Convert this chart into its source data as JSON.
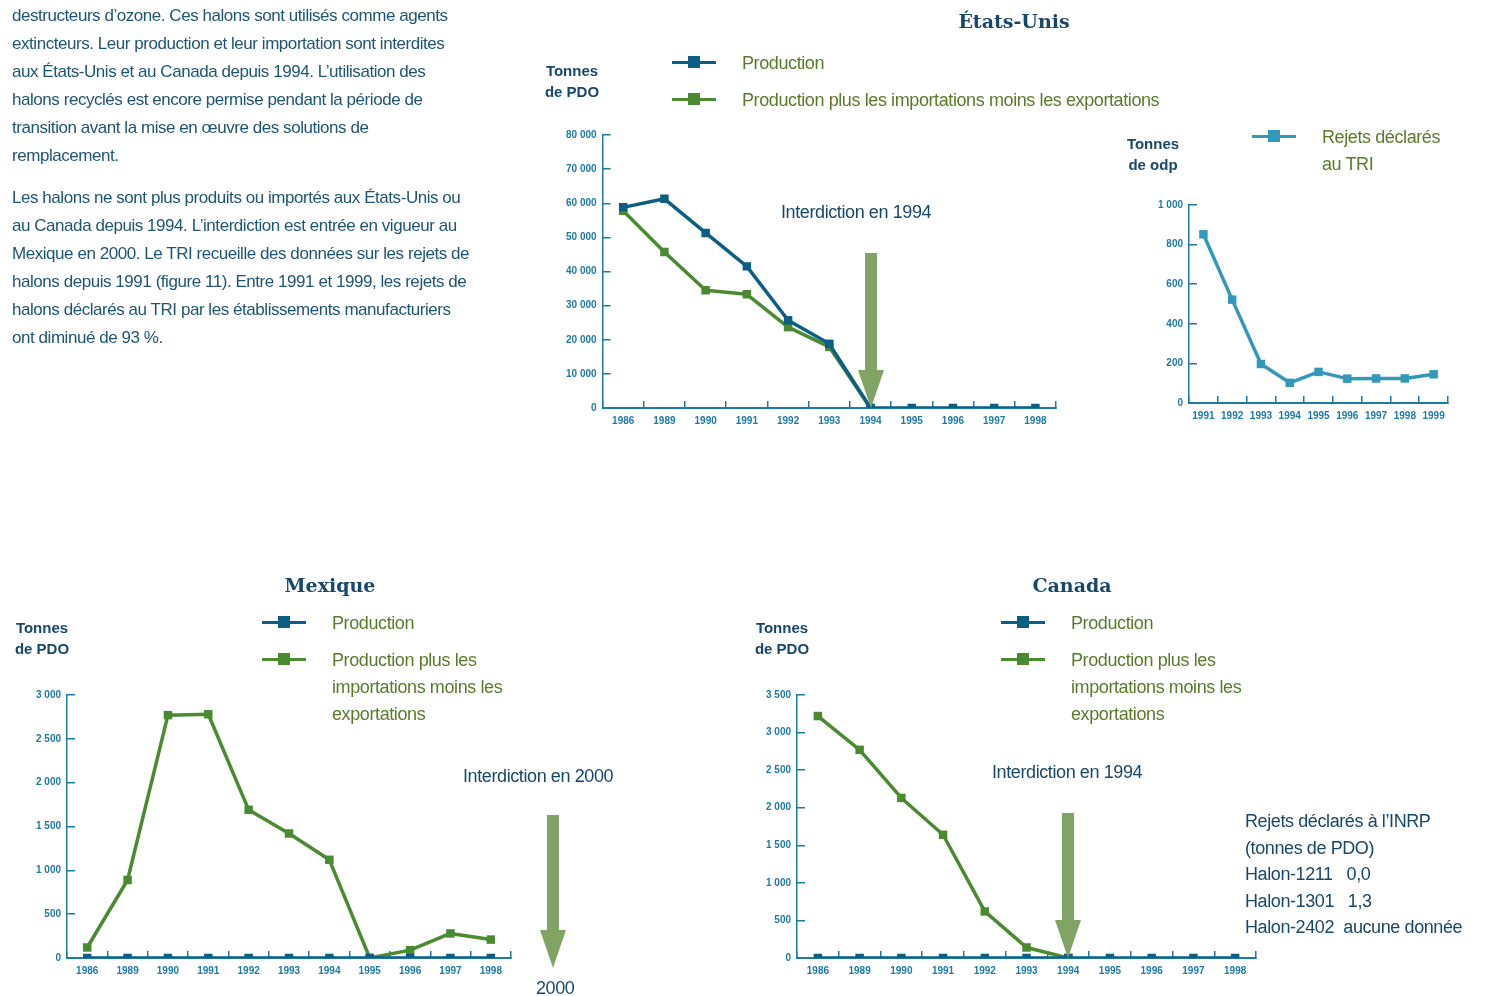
{
  "chart_data": [
    {
      "type": "other",
      "annotations": [
        "destructeurs d’ozone. Ces halons sont utilisés comme agents extincteurs. Leur production et leur importation sont interdites aux États-Unis et au Canada depuis 1994. L’utilisation des halons recyclés est encore permise pendant la période de transition avant la mise en œuvre des solutions de remplacement.",
        "Les halons ne sont plus produits ou importés aux États-Unis ou au Canada depuis 1994. L’interdiction est entrée en vigueur au Mexique en 2000. Le TRI recueille des données sur les rejets de halons depuis 1991 (figure 11). Entre 1991 et 1999, les rejets de halons déclarés au TRI par les établissements manufacturiers ont diminué de 93 %."
      ]
    },
    {
      "type": "line",
      "title": "États-Unis",
      "ylabel": "Tonnes de PDO",
      "categories": [
        "1986",
        "1989",
        "1990",
        "1991",
        "1992",
        "1993",
        "1994",
        "1995",
        "1996",
        "1997",
        "1998"
      ],
      "series": [
        {
          "name": "Production",
          "color": "#0b5e84",
          "values": [
            58800,
            61300,
            51300,
            41500,
            25700,
            18800,
            0,
            0,
            0,
            0,
            0
          ]
        },
        {
          "name": "Production plus les importations moins les exportations",
          "color": "#4a8a30",
          "values": [
            57800,
            45700,
            34500,
            33300,
            23700,
            17900,
            0,
            null,
            null,
            null,
            null
          ]
        }
      ],
      "ylim": [
        0,
        80000
      ],
      "yticks": [
        0,
        {
          "value": 10000,
          "label": "10 000"
        },
        {
          "value": 20000,
          "label": "20 000"
        },
        {
          "value": 30000,
          "label": "30 000"
        },
        {
          "value": 40000,
          "label": "40 000"
        },
        {
          "value": 50000,
          "label": "50 000"
        },
        {
          "value": 60000,
          "label": "60 000"
        },
        {
          "value": 70000,
          "label": "70 000"
        },
        {
          "value": 80000,
          "label": "80 000"
        }
      ],
      "legend": "top",
      "marker": "square",
      "annotations": [
        "Interdiction en 1994"
      ]
    },
    {
      "type": "line",
      "ylabel": "Tonnes de odp",
      "categories": [
        "1991",
        "1992",
        "1993",
        "1994",
        "1995",
        "1996",
        "1997",
        "1998",
        "1999"
      ],
      "series": [
        {
          "name": "Rejets déclarés au TRI",
          "color": "#3399bb",
          "values": [
            852,
            522,
            197,
            102,
            157,
            123,
            124,
            124,
            145
          ]
        }
      ],
      "ylim": [
        0,
        1000
      ],
      "yticks": [
        0,
        200,
        400,
        600,
        800,
        {
          "value": 1000,
          "label": "1 000"
        }
      ],
      "legend": "top right",
      "marker": "square"
    },
    {
      "type": "line",
      "title": "Mexique",
      "ylabel": "Tonnes de PDO",
      "categories": [
        "1986",
        "1989",
        "1990",
        "1991",
        "1992",
        "1993",
        "1994",
        "1995",
        "1996",
        "1997",
        "1998"
      ],
      "series": [
        {
          "name": "Production",
          "color": "#0b5e84",
          "values": [
            0,
            0,
            0,
            0,
            0,
            0,
            0,
            0,
            0,
            0,
            0
          ]
        },
        {
          "name": "Production plus les importations moins les exportations",
          "color": "#4a8a30",
          "values": [
            120,
            890,
            2770,
            2780,
            1690,
            1420,
            1120,
            0,
            90,
            280,
            210
          ]
        }
      ],
      "ylim": [
        0,
        3000
      ],
      "yticks": [
        0,
        500,
        {
          "value": 1000,
          "label": "1 000"
        },
        {
          "value": 1500,
          "label": "1 500"
        },
        {
          "value": 2000,
          "label": "2 000"
        },
        {
          "value": 2500,
          "label": "2 500"
        },
        {
          "value": 3000,
          "label": "3 000"
        }
      ],
      "legend": "top",
      "marker": "square",
      "annotations": [
        "Interdiction en 2000",
        "2000"
      ]
    },
    {
      "type": "line",
      "title": "Canada",
      "ylabel": "Tonnes de PDO",
      "categories": [
        "1986",
        "1989",
        "1990",
        "1991",
        "1992",
        "1993",
        "1994",
        "1995",
        "1996",
        "1997",
        "1998"
      ],
      "series": [
        {
          "name": "Production",
          "color": "#0b5e84",
          "values": [
            0,
            0,
            0,
            0,
            0,
            0,
            0,
            0,
            0,
            0,
            0
          ]
        },
        {
          "name": "Production plus les importations moins les exportations",
          "color": "#4a8a30",
          "values": [
            3220,
            2770,
            2130,
            1640,
            620,
            140,
            0,
            null,
            null,
            null,
            null
          ]
        }
      ],
      "ylim": [
        0,
        3500
      ],
      "yticks": [
        0,
        500,
        {
          "value": 1000,
          "label": "1 000"
        },
        {
          "value": 1500,
          "label": "1 500"
        },
        {
          "value": 2000,
          "label": "2 000"
        },
        {
          "value": 2500,
          "label": "2 500"
        },
        {
          "value": 3000,
          "label": "3 000"
        },
        {
          "value": 3500,
          "label": "3 500"
        }
      ],
      "legend": "top",
      "marker": "square",
      "annotations": [
        "Interdiction en 1994",
        "Rejets déclarés à l’INRP",
        "(tonnes de PDO)",
        "Halon-1211   0,0",
        "Halon-1301   1,3",
        "Halon-2402  aucune donnée"
      ]
    }
  ]
}
